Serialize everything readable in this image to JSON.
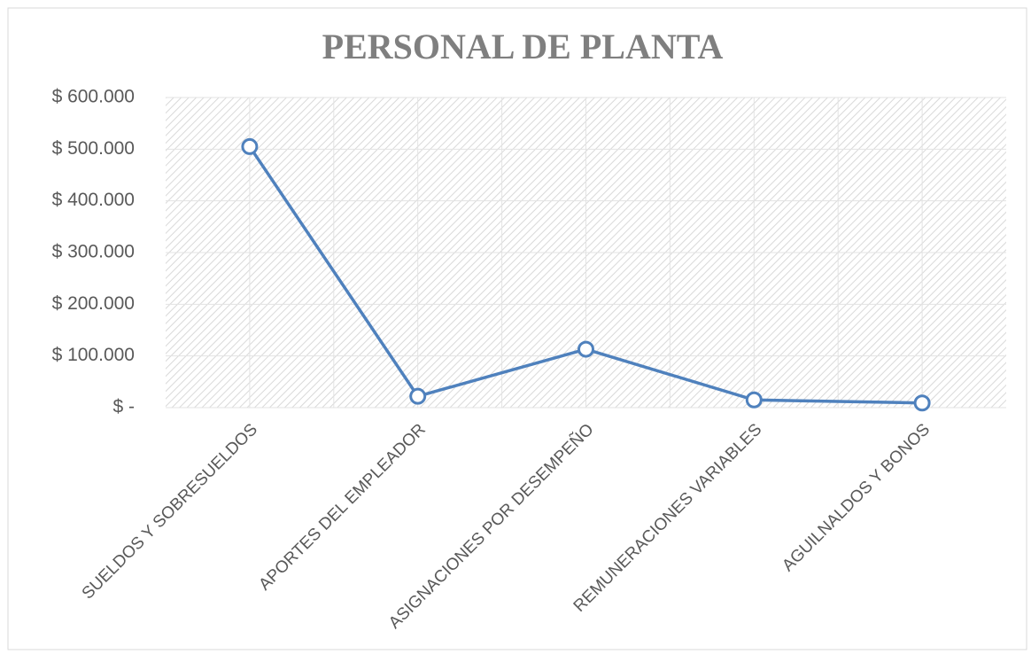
{
  "chart_data": {
    "type": "line",
    "title": "PERSONAL DE PLANTA",
    "categories": [
      "SUELDOS Y SOBRESUELDOS",
      "APORTES DEL EMPLEADOR",
      "ASIGNACIONES POR DESEMPEÑO",
      "REMUNERACIONES VARIABLES",
      "AGUILNALDOS Y BONOS"
    ],
    "series": [
      {
        "name": "PERSONAL DE PLANTA",
        "color": "#4f81bd",
        "values": [
          505000,
          22000,
          113000,
          15000,
          9000
        ]
      }
    ],
    "ylim": [
      0,
      600000
    ],
    "yticks": [
      {
        "value": 0,
        "label": "$ -"
      },
      {
        "value": 100000,
        "label": "$ 100.000"
      },
      {
        "value": 200000,
        "label": "$ 200.000"
      },
      {
        "value": 300000,
        "label": "$ 300.000"
      },
      {
        "value": 400000,
        "label": "$ 400.000"
      },
      {
        "value": 500000,
        "label": "$ 500.000"
      },
      {
        "value": 600000,
        "label": "$ 600.000"
      }
    ],
    "grid": true
  }
}
